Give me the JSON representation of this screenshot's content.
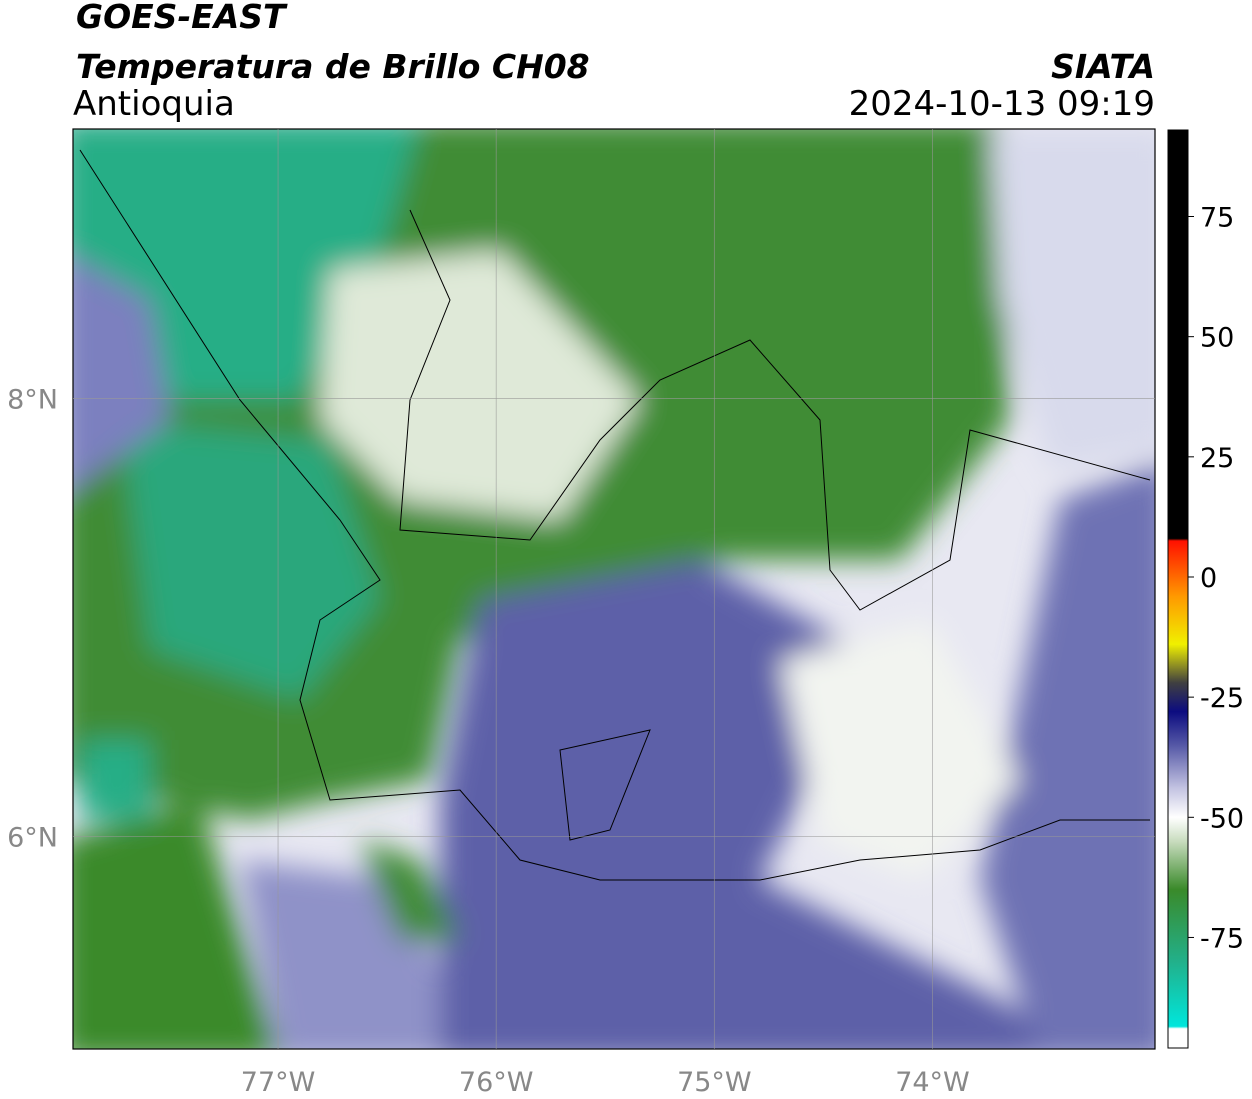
{
  "header": {
    "title": "GOES-EAST",
    "subtitle": "Temperatura de Brillo CH08",
    "region": "Antioquia",
    "source": "SIATA",
    "datetime": "2024-10-13 09:19"
  },
  "map": {
    "xlim": [
      -77.94,
      -72.98
    ],
    "ylim": [
      5.03,
      9.23
    ],
    "xticks": [
      {
        "value": -77,
        "label": "77°W"
      },
      {
        "value": -76,
        "label": "76°W"
      },
      {
        "value": -75,
        "label": "75°W"
      },
      {
        "value": -74,
        "label": "74°W"
      }
    ],
    "yticks": [
      {
        "value": 8,
        "label": "8°N"
      },
      {
        "value": 6,
        "label": "6°N"
      }
    ],
    "grid": true
  },
  "colorbar": {
    "lim": [
      -98,
      93
    ],
    "ticks": [
      75,
      50,
      25,
      0,
      -25,
      -50,
      -75
    ],
    "stops": [
      {
        "value": -98,
        "color": "#ffffff"
      },
      {
        "value": -94,
        "color": "#ffffff"
      },
      {
        "value": -93.5,
        "color": "#00e6dc"
      },
      {
        "value": -80,
        "color": "#22b08a"
      },
      {
        "value": -65,
        "color": "#3a8a2a"
      },
      {
        "value": -55,
        "color": "#c8dcbe"
      },
      {
        "value": -50,
        "color": "#ffffff"
      },
      {
        "value": -44,
        "color": "#c4c4e2"
      },
      {
        "value": -35,
        "color": "#5558a6"
      },
      {
        "value": -28,
        "color": "#0c0c80"
      },
      {
        "value": -22,
        "color": "#404040"
      },
      {
        "value": -14,
        "color": "#f0f000"
      },
      {
        "value": -4,
        "color": "#ff9900"
      },
      {
        "value": 7.5,
        "color": "#ff1100"
      },
      {
        "value": 8,
        "color": "#000000"
      },
      {
        "value": 93,
        "color": "#000000"
      }
    ]
  }
}
